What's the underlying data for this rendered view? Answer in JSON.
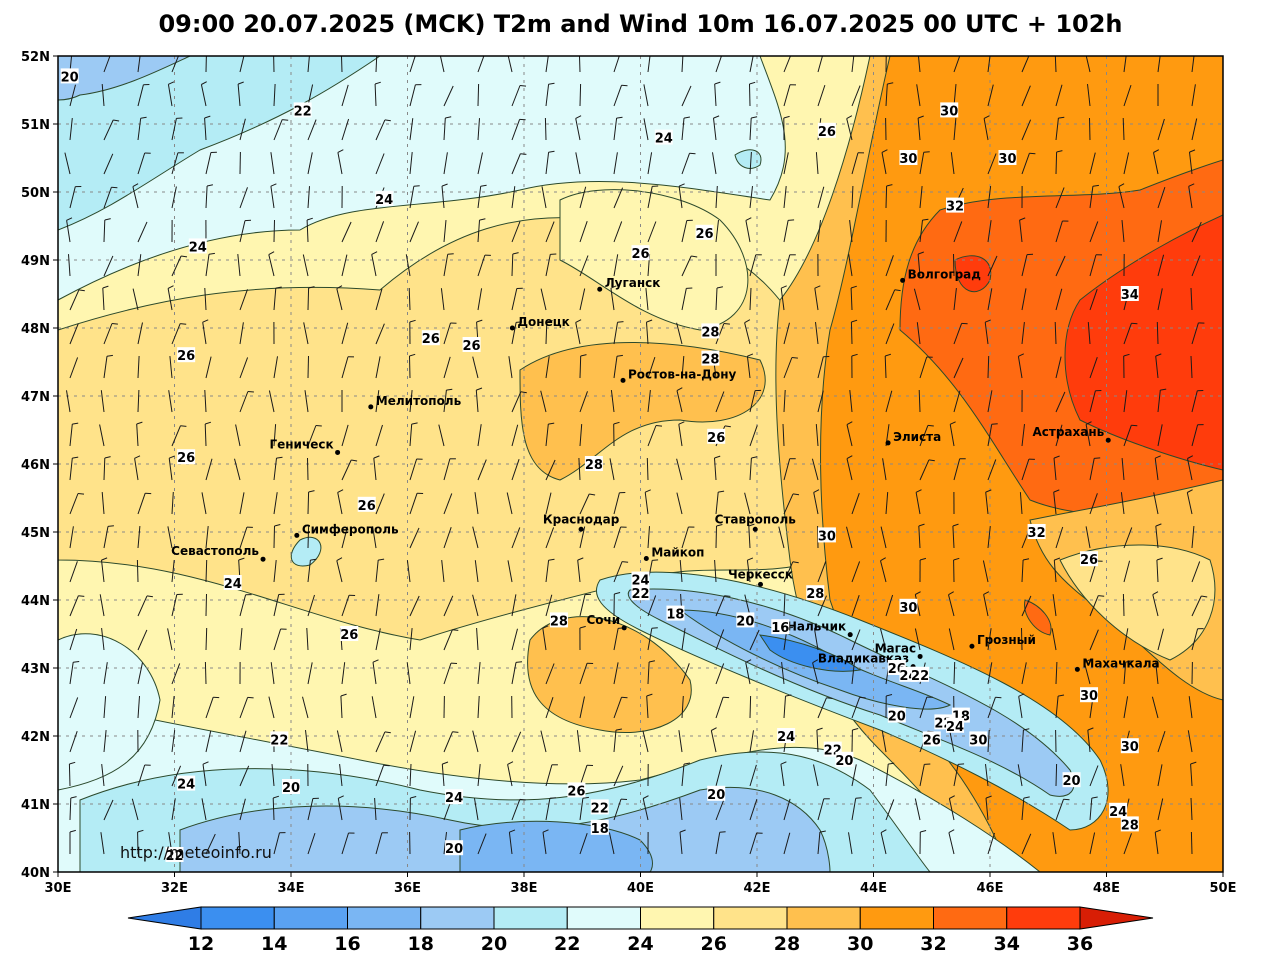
{
  "title": "09:00 20.07.2025 (MCK) T2m and Wind 10m 16.07.2025 00 UTC + 102h",
  "credit": "http://meteoinfo.ru",
  "longitude_ticks": [
    "30E",
    "32E",
    "34E",
    "36E",
    "38E",
    "40E",
    "42E",
    "44E",
    "46E",
    "48E",
    "50E"
  ],
  "latitude_ticks": [
    "52N",
    "51N",
    "50N",
    "49N",
    "48N",
    "47N",
    "46N",
    "45N",
    "44N",
    "43N",
    "42N",
    "41N",
    "40N"
  ],
  "colorbar": {
    "labels": [
      "12",
      "14",
      "16",
      "18",
      "20",
      "22",
      "24",
      "26",
      "28",
      "30",
      "32",
      "34",
      "36"
    ],
    "colors": [
      "#2f7de6",
      "#3b8ff0",
      "#5aa2f2",
      "#7ab6f3",
      "#9ccaf4",
      "#b4ecf5",
      "#e0fbfb",
      "#fff6b0",
      "#ffe38a",
      "#ffc04e",
      "#ff9a10",
      "#ff6a12",
      "#ff3c0c",
      "#d81e05"
    ]
  },
  "cities": [
    {
      "name": "Луганск",
      "lon": 39.3,
      "lat": 48.57
    },
    {
      "name": "Донецк",
      "lon": 37.8,
      "lat": 48.0
    },
    {
      "name": "Волгоград",
      "lon": 44.5,
      "lat": 48.7
    },
    {
      "name": "Ростов-на-Дону",
      "lon": 39.7,
      "lat": 47.23
    },
    {
      "name": "Мелитополь",
      "lon": 35.37,
      "lat": 46.84
    },
    {
      "name": "Элиста",
      "lon": 44.25,
      "lat": 46.31
    },
    {
      "name": "Астрахань",
      "lon": 48.03,
      "lat": 46.35
    },
    {
      "name": "Геническ",
      "lon": 34.8,
      "lat": 46.17
    },
    {
      "name": "Краснодар",
      "lon": 38.98,
      "lat": 45.04
    },
    {
      "name": "Ставрополь",
      "lon": 41.97,
      "lat": 45.04
    },
    {
      "name": "Симферополь",
      "lon": 34.1,
      "lat": 44.95
    },
    {
      "name": "Майкоп",
      "lon": 40.1,
      "lat": 44.61
    },
    {
      "name": "Севастополь",
      "lon": 33.52,
      "lat": 44.6
    },
    {
      "name": "Черкесск",
      "lon": 42.06,
      "lat": 44.23
    },
    {
      "name": "Сочи",
      "lon": 39.72,
      "lat": 43.59
    },
    {
      "name": "Нальчик",
      "lon": 43.6,
      "lat": 43.49
    },
    {
      "name": "Грозный",
      "lon": 45.69,
      "lat": 43.32
    },
    {
      "name": "Магас",
      "lon": 44.8,
      "lat": 43.17
    },
    {
      "name": "Махачкала",
      "lon": 47.5,
      "lat": 42.98
    },
    {
      "name": "Владикавказ",
      "lon": 44.68,
      "lat": 43.02
    }
  ],
  "isotherm_labels": [
    {
      "t": "20",
      "lon": 30.2,
      "lat": 51.7
    },
    {
      "t": "22",
      "lon": 34.2,
      "lat": 51.2
    },
    {
      "t": "24",
      "lon": 40.4,
      "lat": 50.8
    },
    {
      "t": "26",
      "lon": 43.2,
      "lat": 50.9
    },
    {
      "t": "30",
      "lon": 45.3,
      "lat": 51.2
    },
    {
      "t": "30",
      "lon": 46.3,
      "lat": 50.5
    },
    {
      "t": "30",
      "lon": 44.6,
      "lat": 50.5
    },
    {
      "t": "32",
      "lon": 45.4,
      "lat": 49.8
    },
    {
      "t": "24",
      "lon": 35.6,
      "lat": 49.9
    },
    {
      "t": "24",
      "lon": 32.4,
      "lat": 49.2
    },
    {
      "t": "26",
      "lon": 40.0,
      "lat": 49.1
    },
    {
      "t": "26",
      "lon": 41.1,
      "lat": 49.4
    },
    {
      "t": "34",
      "lon": 48.4,
      "lat": 48.5
    },
    {
      "t": "28",
      "lon": 41.2,
      "lat": 47.95
    },
    {
      "t": "26",
      "lon": 36.4,
      "lat": 47.85
    },
    {
      "t": "26",
      "lon": 37.1,
      "lat": 47.75
    },
    {
      "t": "28",
      "lon": 41.2,
      "lat": 47.55
    },
    {
      "t": "26",
      "lon": 32.2,
      "lat": 47.6
    },
    {
      "t": "26",
      "lon": 41.3,
      "lat": 46.4
    },
    {
      "t": "28",
      "lon": 39.2,
      "lat": 46.0
    },
    {
      "t": "26",
      "lon": 32.2,
      "lat": 46.1
    },
    {
      "t": "26",
      "lon": 35.3,
      "lat": 45.4
    },
    {
      "t": "30",
      "lon": 43.2,
      "lat": 44.95
    },
    {
      "t": "32",
      "lon": 46.8,
      "lat": 45.0
    },
    {
      "t": "26",
      "lon": 47.7,
      "lat": 44.6
    },
    {
      "t": "24",
      "lon": 40.0,
      "lat": 44.3
    },
    {
      "t": "22",
      "lon": 40.0,
      "lat": 44.1
    },
    {
      "t": "28",
      "lon": 43.0,
      "lat": 44.1
    },
    {
      "t": "30",
      "lon": 44.6,
      "lat": 43.9
    },
    {
      "t": "18",
      "lon": 40.6,
      "lat": 43.8
    },
    {
      "t": "20",
      "lon": 41.8,
      "lat": 43.7
    },
    {
      "t": "16",
      "lon": 42.4,
      "lat": 43.6
    },
    {
      "t": "28",
      "lon": 38.6,
      "lat": 43.7
    },
    {
      "t": "26",
      "lon": 35.0,
      "lat": 43.5
    },
    {
      "t": "24",
      "lon": 33.0,
      "lat": 44.25
    },
    {
      "t": "26",
      "lon": 44.4,
      "lat": 43.0
    },
    {
      "t": "24",
      "lon": 44.6,
      "lat": 42.9
    },
    {
      "t": "22",
      "lon": 44.8,
      "lat": 42.9
    },
    {
      "t": "30",
      "lon": 47.7,
      "lat": 42.6
    },
    {
      "t": "20",
      "lon": 44.4,
      "lat": 42.3
    },
    {
      "t": "18",
      "lon": 45.5,
      "lat": 42.3
    },
    {
      "t": "22",
      "lon": 45.2,
      "lat": 42.2
    },
    {
      "t": "24",
      "lon": 45.4,
      "lat": 42.15
    },
    {
      "t": "26",
      "lon": 45.0,
      "lat": 41.95
    },
    {
      "t": "30",
      "lon": 45.8,
      "lat": 41.95
    },
    {
      "t": "30",
      "lon": 48.4,
      "lat": 41.85
    },
    {
      "t": "24",
      "lon": 42.5,
      "lat": 42.0
    },
    {
      "t": "22",
      "lon": 43.3,
      "lat": 41.8
    },
    {
      "t": "20",
      "lon": 43.5,
      "lat": 41.65
    },
    {
      "t": "22",
      "lon": 33.8,
      "lat": 41.95
    },
    {
      "t": "24",
      "lon": 32.2,
      "lat": 41.3
    },
    {
      "t": "20",
      "lon": 34.0,
      "lat": 41.25
    },
    {
      "t": "24",
      "lon": 36.8,
      "lat": 41.1
    },
    {
      "t": "26",
      "lon": 38.9,
      "lat": 41.2
    },
    {
      "t": "22",
      "lon": 39.3,
      "lat": 40.95
    },
    {
      "t": "18",
      "lon": 39.3,
      "lat": 40.65
    },
    {
      "t": "20",
      "lon": 41.3,
      "lat": 41.15
    },
    {
      "t": "20",
      "lon": 47.4,
      "lat": 41.35
    },
    {
      "t": "24",
      "lon": 48.2,
      "lat": 40.9
    },
    {
      "t": "28",
      "lon": 48.4,
      "lat": 40.7
    },
    {
      "t": "20",
      "lon": 36.8,
      "lat": 40.35
    },
    {
      "t": "22",
      "lon": 32.0,
      "lat": 40.25
    }
  ]
}
